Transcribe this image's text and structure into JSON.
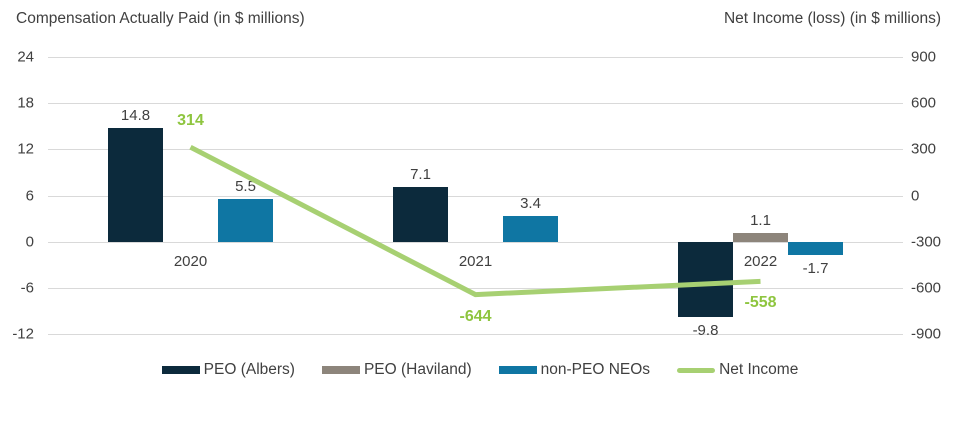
{
  "chart_data": {
    "type": "combo-bar-line",
    "categories": [
      "2020",
      "2021",
      "2022"
    ],
    "left_axis": {
      "title": "Compensation Actually Paid (in $ millions)",
      "ticks": [
        "24",
        "18",
        "12",
        "6",
        "0",
        "-6",
        "-12"
      ],
      "max": 24,
      "min": -12
    },
    "right_axis": {
      "title": "Net Income (loss) (in $ millions)",
      "ticks": [
        "900",
        "600",
        "300",
        "0",
        "-300",
        "-600",
        "-900"
      ],
      "max": 900,
      "min": -900
    },
    "grid": true,
    "legend_position": "bottom",
    "series": [
      {
        "name": "PEO (Albers)",
        "kind": "bar",
        "axis": "left",
        "color": "#0c2a3c",
        "values": [
          14.8,
          7.1,
          -9.8
        ],
        "labels": [
          "14.8",
          "7.1",
          "-9.8"
        ]
      },
      {
        "name": "PEO (Haviland)",
        "kind": "bar",
        "axis": "left",
        "color": "#8d857b",
        "values": [
          null,
          null,
          1.1
        ],
        "labels": [
          null,
          null,
          "1.1"
        ]
      },
      {
        "name": "non-PEO NEOs",
        "kind": "bar",
        "axis": "left",
        "color": "#0f76a3",
        "values": [
          5.5,
          3.4,
          -1.7
        ],
        "labels": [
          "5.5",
          "3.4",
          "-1.7"
        ]
      },
      {
        "name": "Net Income",
        "kind": "line",
        "axis": "right",
        "color": "#a7d072",
        "label_color": "#8ec53f",
        "values": [
          314,
          -644,
          -558
        ],
        "labels": [
          "314",
          "-644",
          "-558"
        ]
      }
    ]
  },
  "colors": {
    "text": "#404040",
    "gridline": "#d9d9d9",
    "background": "#ffffff"
  }
}
